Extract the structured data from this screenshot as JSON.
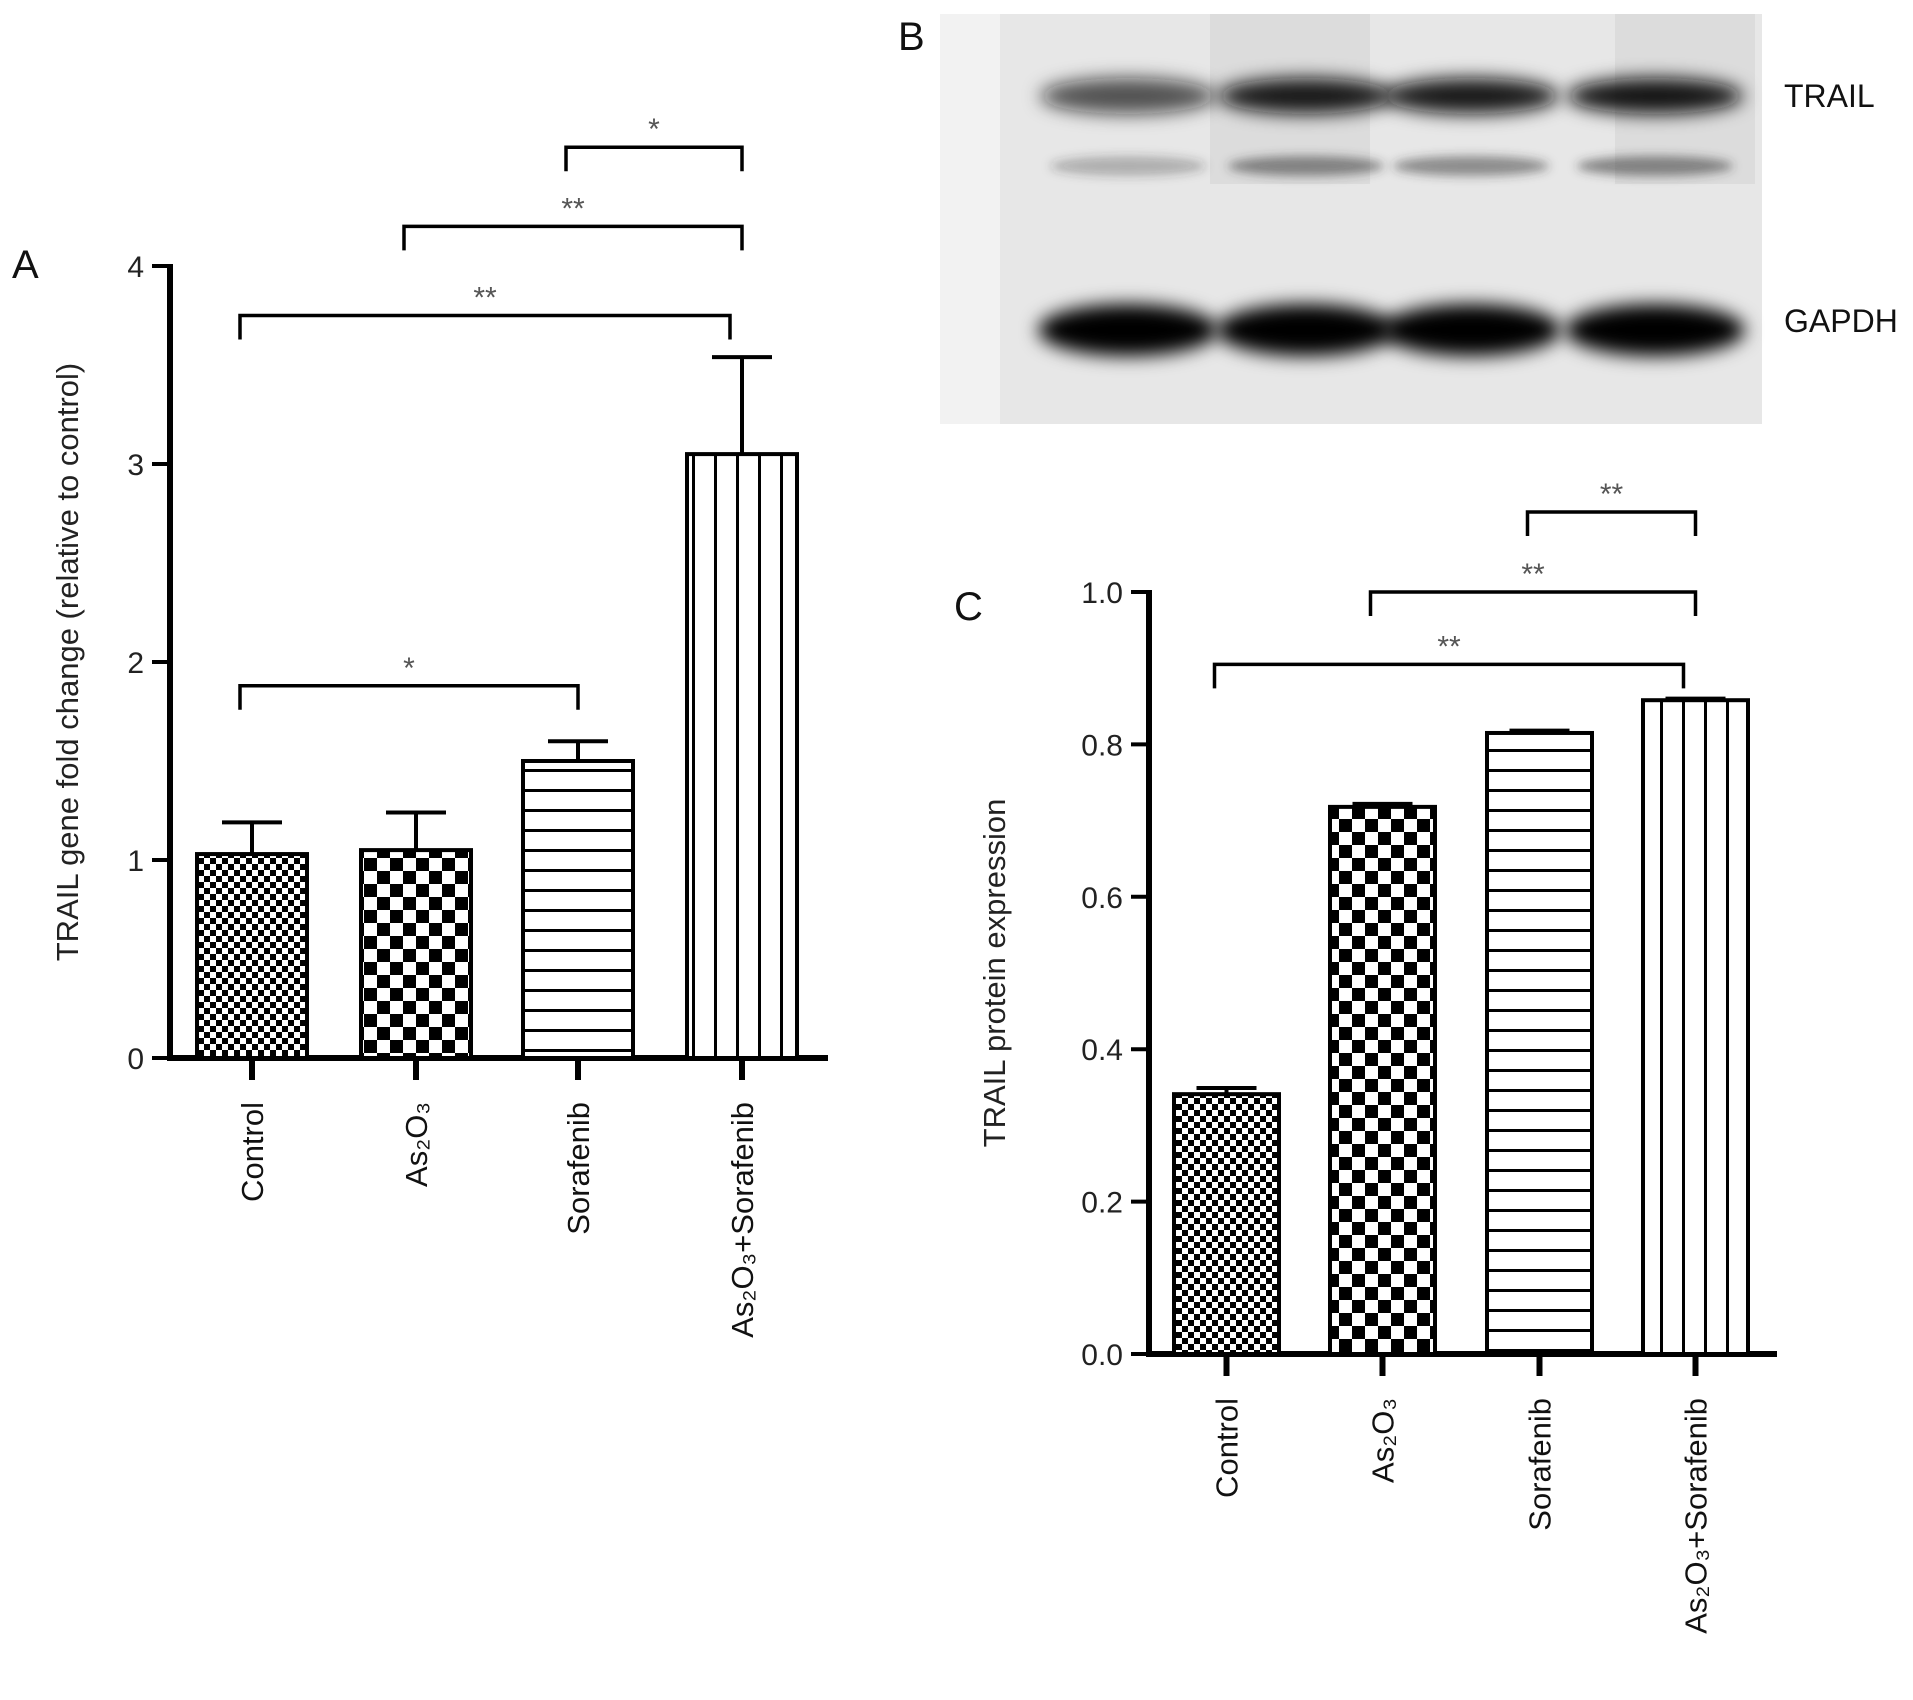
{
  "colors": {
    "ink": "#000000",
    "blot_band": "#111111",
    "blot_background": "#e6e6e6"
  },
  "panels": {
    "a": "A",
    "b": "B",
    "c": "C"
  },
  "blot": {
    "labels": [
      "TRAIL",
      "GAPDH"
    ],
    "lane_count": 4
  },
  "chart_data": [
    {
      "type": "bar",
      "panel": "A",
      "ylabel": "TRAIL gene fold change (relative to control)",
      "xlabel": "",
      "categories": [
        "Control",
        "As₂O₃",
        "Sorafenib",
        "As₂O₃+Sorafenib"
      ],
      "values": [
        1.03,
        1.05,
        1.5,
        3.05
      ],
      "error_upper": [
        1.19,
        1.24,
        1.6,
        3.54
      ],
      "patterns": [
        "fine-checker",
        "coarse-checker",
        "horizontal-lines",
        "vertical-lines"
      ],
      "ylim": [
        0,
        4
      ],
      "yticks": [
        "0",
        "1",
        "2",
        "3",
        "4"
      ],
      "ytick_values": [
        0,
        1,
        2,
        3,
        4
      ],
      "grid": false,
      "significance": [
        {
          "from": 0,
          "to": 2,
          "label": "*",
          "level": 1.88
        },
        {
          "from": 0,
          "to": 3,
          "label": "**",
          "level": 3.75
        },
        {
          "from": 1,
          "to": 3,
          "label": "**",
          "level": 4.2
        },
        {
          "from": 2,
          "to": 3,
          "label": "*",
          "level": 4.6
        }
      ]
    },
    {
      "type": "bar",
      "panel": "C",
      "ylabel": "TRAIL protein expression",
      "xlabel": "",
      "categories": [
        "Control",
        "As₂O₃",
        "Sorafenib",
        "As₂O₃+Sorafenib"
      ],
      "values": [
        0.341,
        0.718,
        0.815,
        0.858
      ],
      "error_upper": [
        0.349,
        0.722,
        0.818,
        0.86
      ],
      "patterns": [
        "fine-checker",
        "coarse-checker",
        "horizontal-lines",
        "vertical-lines"
      ],
      "ylim": [
        0,
        1.0
      ],
      "yticks": [
        "0.0",
        "0.2",
        "0.4",
        "0.6",
        "0.8",
        "1.0"
      ],
      "ytick_values": [
        0,
        0.2,
        0.4,
        0.6,
        0.8,
        1.0
      ],
      "grid": false,
      "significance": [
        {
          "from": 0,
          "to": 3,
          "label": "**",
          "level": 0.905
        },
        {
          "from": 1,
          "to": 3,
          "label": "**",
          "level": 1.0
        },
        {
          "from": 2,
          "to": 3,
          "label": "**",
          "level": 1.105
        }
      ]
    }
  ]
}
